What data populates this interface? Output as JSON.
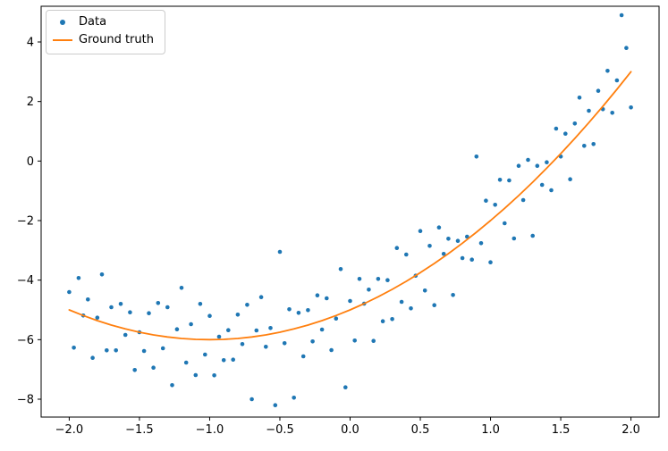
{
  "chart_data": {
    "type": "scatter",
    "title": "",
    "xlabel": "",
    "ylabel": "",
    "xlim": [
      -2.2,
      2.2
    ],
    "ylim": [
      -8.6,
      5.2
    ],
    "grid": false,
    "legend_position": "upper left",
    "xticks": {
      "values": [
        -2.0,
        -1.5,
        -1.0,
        -0.5,
        0.0,
        0.5,
        1.0,
        1.5,
        2.0
      ],
      "labels": [
        "−2.0",
        "−1.5",
        "−1.0",
        "−0.5",
        "0.0",
        "0.5",
        "1.0",
        "1.5",
        "2.0"
      ]
    },
    "yticks": {
      "values": [
        -8,
        -6,
        -4,
        -2,
        0,
        2,
        4
      ],
      "labels": [
        "−8",
        "−6",
        "−4",
        "−2",
        "0",
        "2",
        "4"
      ]
    },
    "series": [
      {
        "name": "Data",
        "type": "scatter",
        "color": "#1f77b4",
        "points": [
          [
            -2.0,
            -4.4
          ],
          [
            -1.967,
            -6.27
          ],
          [
            -1.933,
            -3.93
          ],
          [
            -1.9,
            -5.19
          ],
          [
            -1.867,
            -4.65
          ],
          [
            -1.833,
            -6.61
          ],
          [
            -1.8,
            -5.26
          ],
          [
            -1.767,
            -3.81
          ],
          [
            -1.733,
            -6.36
          ],
          [
            -1.7,
            -4.91
          ],
          [
            -1.667,
            -6.36
          ],
          [
            -1.633,
            -4.8
          ],
          [
            -1.6,
            -5.84
          ],
          [
            -1.567,
            -5.08
          ],
          [
            -1.533,
            -7.02
          ],
          [
            -1.5,
            -5.75
          ],
          [
            -1.467,
            -6.38
          ],
          [
            -1.433,
            -5.11
          ],
          [
            -1.4,
            -6.94
          ],
          [
            -1.367,
            -4.77
          ],
          [
            -1.333,
            -6.29
          ],
          [
            -1.3,
            -4.91
          ],
          [
            -1.267,
            -7.53
          ],
          [
            -1.233,
            -5.65
          ],
          [
            -1.2,
            -4.26
          ],
          [
            -1.167,
            -6.77
          ],
          [
            -1.133,
            -5.48
          ],
          [
            -1.1,
            -7.19
          ],
          [
            -1.067,
            -4.8
          ],
          [
            -1.033,
            -6.5
          ],
          [
            -1.0,
            -5.2
          ],
          [
            -0.967,
            -7.2
          ],
          [
            -0.933,
            -5.9
          ],
          [
            -0.9,
            -6.69
          ],
          [
            -0.867,
            -5.68
          ],
          [
            -0.833,
            -6.67
          ],
          [
            -0.8,
            -5.16
          ],
          [
            -0.767,
            -6.15
          ],
          [
            -0.733,
            -4.83
          ],
          [
            -0.7,
            -8.0
          ],
          [
            -0.667,
            -5.69
          ],
          [
            -0.633,
            -4.57
          ],
          [
            -0.6,
            -6.24
          ],
          [
            -0.567,
            -5.61
          ],
          [
            -0.533,
            -8.2
          ],
          [
            -0.5,
            -3.05
          ],
          [
            -0.467,
            -6.12
          ],
          [
            -0.433,
            -4.98
          ],
          [
            -0.4,
            -7.95
          ],
          [
            -0.367,
            -5.1
          ],
          [
            -0.333,
            -6.56
          ],
          [
            -0.3,
            -5.01
          ],
          [
            -0.267,
            -6.06
          ],
          [
            -0.233,
            -4.51
          ],
          [
            -0.2,
            -5.66
          ],
          [
            -0.167,
            -4.61
          ],
          [
            -0.133,
            -6.35
          ],
          [
            -0.1,
            -5.29
          ],
          [
            -0.067,
            -3.63
          ],
          [
            -0.033,
            -7.6
          ],
          [
            0.0,
            -4.7
          ],
          [
            0.033,
            -6.03
          ],
          [
            0.067,
            -3.96
          ],
          [
            0.1,
            -4.79
          ],
          [
            0.133,
            -4.32
          ],
          [
            0.167,
            -6.04
          ],
          [
            0.2,
            -3.96
          ],
          [
            0.233,
            -5.38
          ],
          [
            0.267,
            -4.0
          ],
          [
            0.3,
            -5.31
          ],
          [
            0.333,
            -2.92
          ],
          [
            0.367,
            -4.73
          ],
          [
            0.4,
            -3.14
          ],
          [
            0.433,
            -4.95
          ],
          [
            0.467,
            -3.85
          ],
          [
            0.5,
            -2.35
          ],
          [
            0.533,
            -4.35
          ],
          [
            0.567,
            -2.85
          ],
          [
            0.6,
            -4.84
          ],
          [
            0.633,
            -2.23
          ],
          [
            0.667,
            -3.12
          ],
          [
            0.7,
            -2.61
          ],
          [
            0.733,
            -4.5
          ],
          [
            0.767,
            -2.68
          ],
          [
            0.8,
            -3.26
          ],
          [
            0.833,
            -2.54
          ],
          [
            0.867,
            -3.31
          ],
          [
            0.9,
            0.15
          ],
          [
            0.933,
            -2.76
          ],
          [
            0.967,
            -1.33
          ],
          [
            1.0,
            -3.4
          ],
          [
            1.033,
            -1.47
          ],
          [
            1.067,
            -0.63
          ],
          [
            1.1,
            -2.09
          ],
          [
            1.133,
            -0.65
          ],
          [
            1.167,
            -2.6
          ],
          [
            1.2,
            -0.16
          ],
          [
            1.233,
            -1.31
          ],
          [
            1.267,
            0.04
          ],
          [
            1.3,
            -2.51
          ],
          [
            1.333,
            -0.16
          ],
          [
            1.367,
            -0.8
          ],
          [
            1.4,
            -0.04
          ],
          [
            1.433,
            -0.98
          ],
          [
            1.467,
            1.09
          ],
          [
            1.5,
            0.15
          ],
          [
            1.533,
            0.92
          ],
          [
            1.567,
            -0.61
          ],
          [
            1.6,
            1.26
          ],
          [
            1.633,
            2.13
          ],
          [
            1.667,
            0.51
          ],
          [
            1.7,
            1.69
          ],
          [
            1.733,
            0.57
          ],
          [
            1.767,
            2.36
          ],
          [
            1.8,
            1.74
          ],
          [
            1.833,
            3.03
          ],
          [
            1.867,
            1.62
          ],
          [
            1.9,
            2.71
          ],
          [
            1.933,
            4.9
          ],
          [
            1.967,
            3.8
          ],
          [
            2.0,
            1.8
          ]
        ]
      },
      {
        "name": "Ground truth",
        "type": "line",
        "color": "#ff7f0e",
        "points": [
          [
            -2.0,
            -5.0
          ],
          [
            -1.9,
            -5.19
          ],
          [
            -1.8,
            -5.36
          ],
          [
            -1.7,
            -5.51
          ],
          [
            -1.6,
            -5.64
          ],
          [
            -1.5,
            -5.75
          ],
          [
            -1.4,
            -5.84
          ],
          [
            -1.3,
            -5.91
          ],
          [
            -1.2,
            -5.96
          ],
          [
            -1.1,
            -5.99
          ],
          [
            -1.0,
            -6.0
          ],
          [
            -0.9,
            -5.99
          ],
          [
            -0.8,
            -5.96
          ],
          [
            -0.7,
            -5.91
          ],
          [
            -0.6,
            -5.84
          ],
          [
            -0.5,
            -5.75
          ],
          [
            -0.4,
            -5.64
          ],
          [
            -0.3,
            -5.51
          ],
          [
            -0.2,
            -5.36
          ],
          [
            -0.1,
            -5.19
          ],
          [
            0.0,
            -5.0
          ],
          [
            0.1,
            -4.79
          ],
          [
            0.2,
            -4.56
          ],
          [
            0.3,
            -4.31
          ],
          [
            0.4,
            -4.04
          ],
          [
            0.5,
            -3.75
          ],
          [
            0.6,
            -3.44
          ],
          [
            0.7,
            -3.11
          ],
          [
            0.8,
            -2.76
          ],
          [
            0.9,
            -2.39
          ],
          [
            1.0,
            -2.0
          ],
          [
            1.1,
            -1.59
          ],
          [
            1.2,
            -1.16
          ],
          [
            1.3,
            -0.71
          ],
          [
            1.4,
            -0.24
          ],
          [
            1.5,
            0.25
          ],
          [
            1.6,
            0.76
          ],
          [
            1.7,
            1.29
          ],
          [
            1.8,
            1.84
          ],
          [
            1.9,
            2.41
          ],
          [
            2.0,
            3.0
          ]
        ]
      }
    ]
  }
}
